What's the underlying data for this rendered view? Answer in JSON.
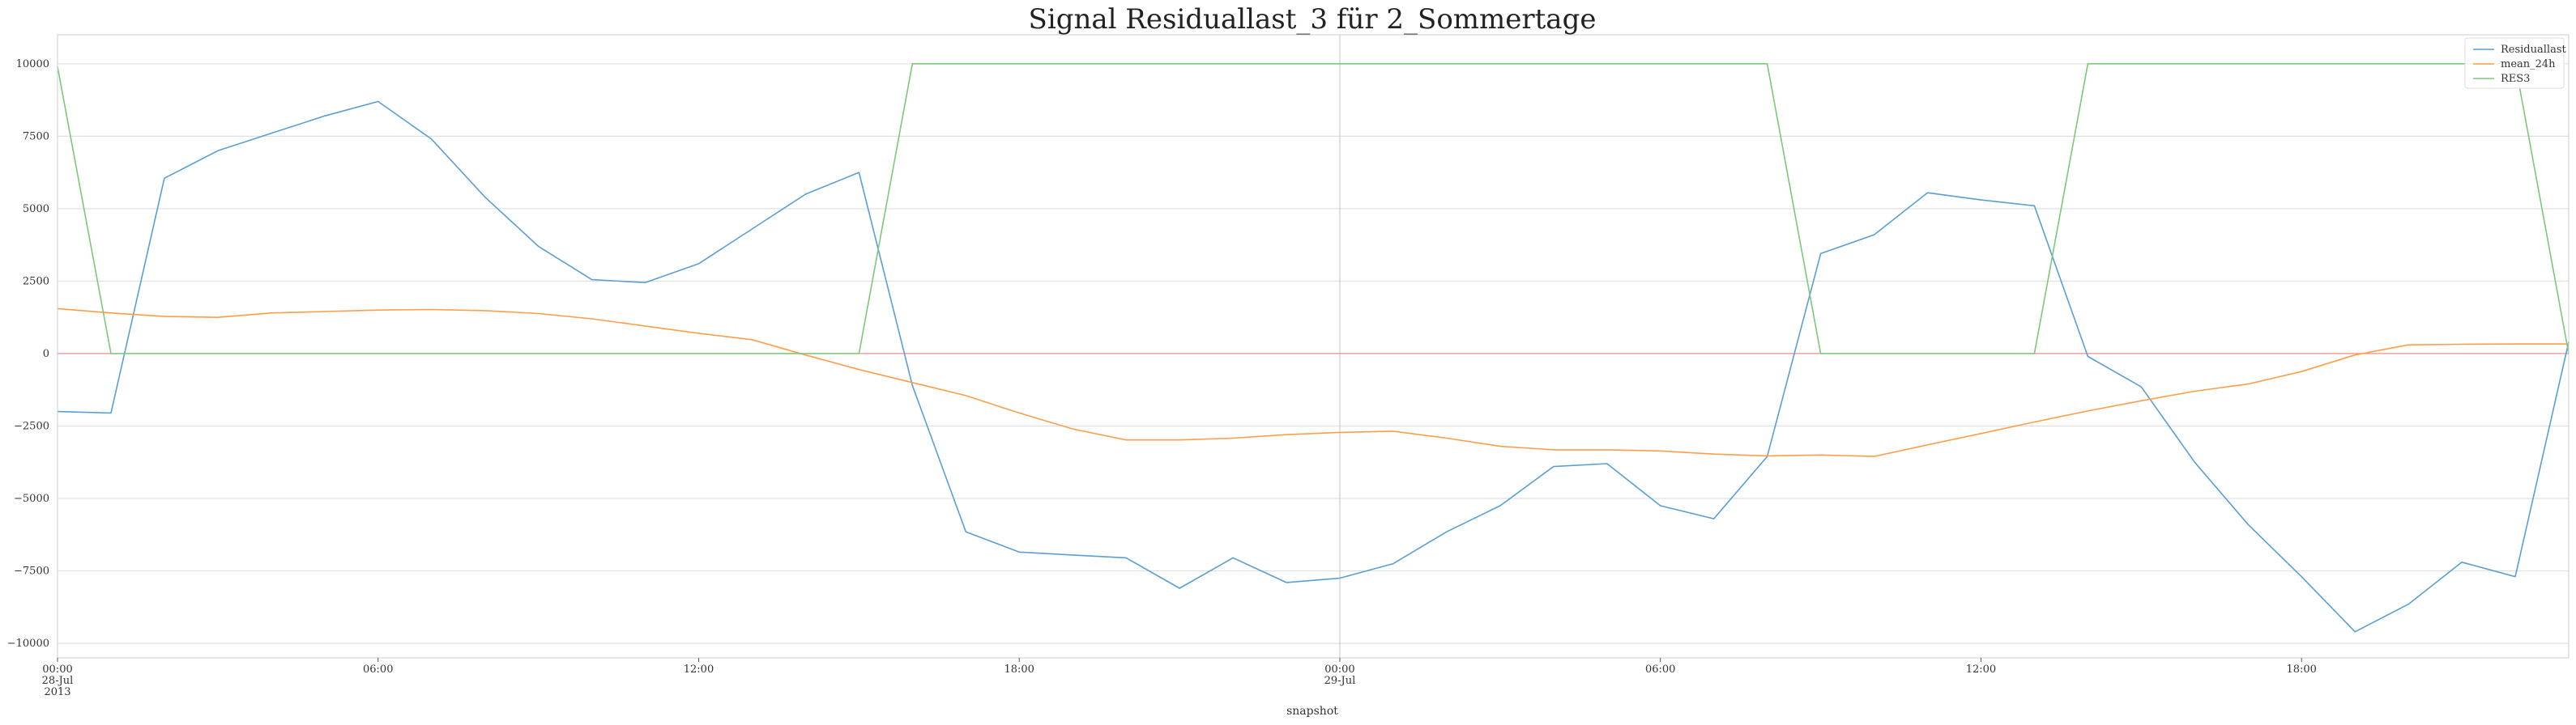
{
  "chart_data": {
    "type": "line",
    "title": "Signal Residuallast_3 für 2_Sommertage",
    "xlabel": "snapshot",
    "ylabel": "",
    "ylim": [
      -10500,
      11000
    ],
    "yticks": [
      10000,
      7500,
      5000,
      2500,
      0,
      -2500,
      -5000,
      -7500,
      -10000
    ],
    "ytick_labels": [
      "10000",
      "7500",
      "5000",
      "2500",
      "0",
      "−2500",
      "−5000",
      "−7500",
      "−10000"
    ],
    "xlim": [
      0,
      47
    ],
    "xticks": [
      {
        "x": 0,
        "lines": [
          "00:00",
          "28-Jul",
          "2013"
        ]
      },
      {
        "x": 6,
        "lines": [
          "06:00"
        ]
      },
      {
        "x": 12,
        "lines": [
          "12:00"
        ]
      },
      {
        "x": 18,
        "lines": [
          "18:00"
        ]
      },
      {
        "x": 24,
        "lines": [
          "00:00",
          "29-Jul"
        ]
      },
      {
        "x": 30,
        "lines": [
          "06:00"
        ]
      },
      {
        "x": 36,
        "lines": [
          "12:00"
        ]
      },
      {
        "x": 42,
        "lines": [
          "18:00"
        ]
      }
    ],
    "grid": true,
    "legend_position": "top-right",
    "x": [
      0,
      1,
      2,
      3,
      4,
      5,
      6,
      7,
      8,
      9,
      10,
      11,
      12,
      13,
      14,
      15,
      16,
      17,
      18,
      19,
      20,
      21,
      22,
      23,
      24,
      25,
      26,
      27,
      28,
      29,
      30,
      31,
      32,
      33,
      34,
      35,
      36,
      37,
      38,
      39,
      40,
      41,
      42,
      43,
      44,
      45,
      46,
      47
    ],
    "series": [
      {
        "name": "Residuallast",
        "color": "#5a9fd4",
        "values": [
          -2000,
          -2050,
          6050,
          7000,
          7600,
          8200,
          8700,
          7400,
          5400,
          3700,
          2550,
          2450,
          3100,
          4300,
          5500,
          6250,
          -1100,
          -6150,
          -6850,
          -6950,
          -7050,
          -8100,
          -7050,
          -7900,
          -7750,
          -7250,
          -6150,
          -5250,
          -3900,
          -3800,
          -5250,
          -5700,
          -3550,
          3450,
          4100,
          5550,
          5300,
          5100,
          -100,
          -1150,
          -3750,
          -5900,
          -7700,
          -9600,
          -8650,
          -7200,
          -7700,
          400
        ]
      },
      {
        "name": "mean_24h",
        "color": "#ff9e4a",
        "values": [
          1550,
          1400,
          1280,
          1250,
          1400,
          1450,
          1500,
          1520,
          1480,
          1380,
          1200,
          950,
          700,
          480,
          -50,
          -550,
          -1000,
          -1450,
          -2050,
          -2600,
          -2980,
          -2980,
          -2920,
          -2800,
          -2720,
          -2680,
          -2920,
          -3200,
          -3320,
          -3320,
          -3360,
          -3470,
          -3530,
          -3500,
          -3550,
          -3150,
          -2760,
          -2360,
          -1980,
          -1630,
          -1300,
          -1050,
          -620,
          -50,
          300,
          320,
          330,
          330
        ]
      },
      {
        "name": "RES3",
        "color": "#7cc87c",
        "values": [
          9900,
          0,
          0,
          0,
          0,
          0,
          0,
          0,
          0,
          0,
          0,
          0,
          0,
          0,
          0,
          0,
          10000,
          10000,
          10000,
          10000,
          10000,
          10000,
          10000,
          10000,
          10000,
          10000,
          10000,
          10000,
          10000,
          10000,
          10000,
          10000,
          10000,
          0,
          0,
          0,
          0,
          0,
          10000,
          10000,
          10000,
          10000,
          10000,
          10000,
          10000,
          10000,
          10000,
          0
        ]
      }
    ],
    "reference_line": {
      "y": 0,
      "color": "#f08080"
    },
    "vertical_line": {
      "x": 24,
      "color": "#cccccc"
    }
  }
}
